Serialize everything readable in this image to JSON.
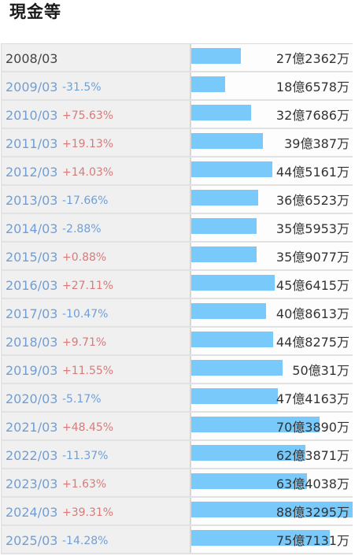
{
  "title": "現金等",
  "colors": {
    "bar": "#79c9fa",
    "increase": "#d87a7a",
    "decrease": "#6f9fd8"
  },
  "chart_data": {
    "type": "bar",
    "orientation": "horizontal",
    "title": "現金等",
    "unit": "yen",
    "categories": [
      "2008/03",
      "2009/03",
      "2010/03",
      "2011/03",
      "2012/03",
      "2013/03",
      "2014/03",
      "2015/03",
      "2016/03",
      "2017/03",
      "2018/03",
      "2019/03",
      "2020/03",
      "2021/03",
      "2022/03",
      "2023/03",
      "2024/03",
      "2025/03"
    ],
    "changes": [
      "",
      "-31.5%",
      "+75.63%",
      "+19.13%",
      "+14.03%",
      "-17.66%",
      "-2.88%",
      "+0.88%",
      "+27.11%",
      "-10.47%",
      "+9.71%",
      "+11.55%",
      "-5.17%",
      "+48.45%",
      "-11.37%",
      "+1.63%",
      "+39.31%",
      "-14.28%"
    ],
    "labels": [
      "27億2362万",
      "18億6578万",
      "32億7686万",
      "39億387万",
      "44億5161万",
      "36億6523万",
      "35億5953万",
      "35億9077万",
      "45億6415万",
      "40億8613万",
      "44億8275万",
      "50億31万",
      "47億4163万",
      "70億3890万",
      "62億3871万",
      "63億4038万",
      "88億3295万",
      "75億7131万"
    ],
    "values": [
      2723620000,
      1865780000,
      3276860000,
      3903870000,
      4451610000,
      3665230000,
      3559530000,
      3590770000,
      4564150000,
      4086130000,
      4482750000,
      5000310000,
      4741630000,
      7038900000,
      6238710000,
      6340380000,
      8832950000,
      7571310000
    ],
    "xlim": [
      0,
      8832950000
    ]
  }
}
